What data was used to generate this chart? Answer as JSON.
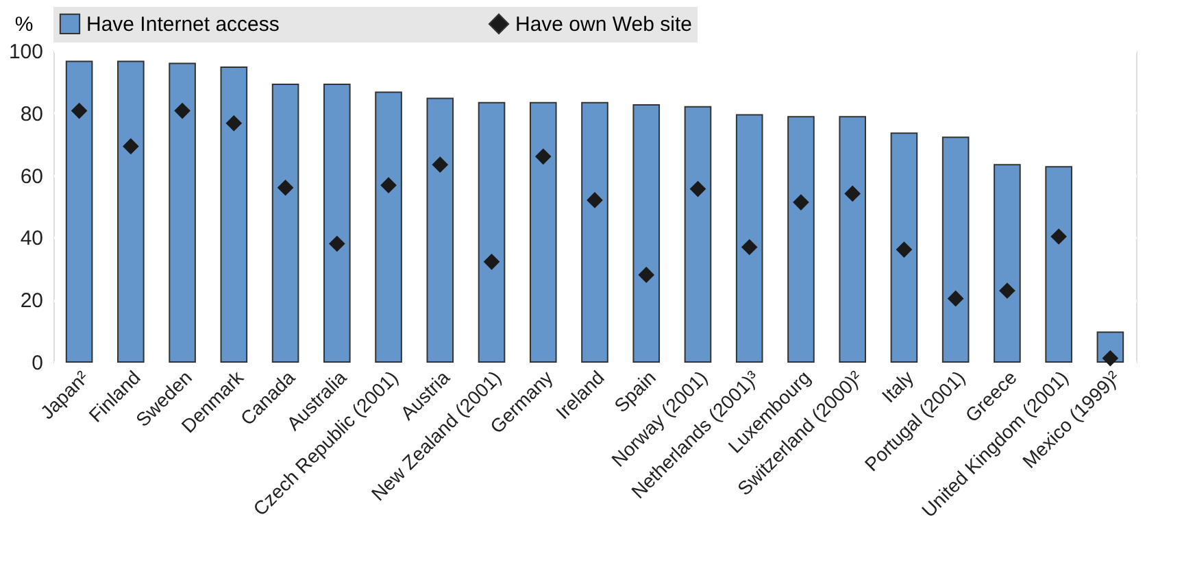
{
  "chart_data": {
    "type": "bar",
    "ylabel": "%",
    "categories": [
      "Japan²",
      "Finland",
      "Sweden",
      "Denmark",
      "Canada",
      "Australia",
      "Czech Republic (2001)",
      "Austria",
      "New Zealand (2001)",
      "Germany",
      "Ireland",
      "Spain",
      "Norway (2001)",
      "Netherlands (2001)³",
      "Luxembourg",
      "Switzerland (2000)²",
      "Italy",
      "Portugal (2001)",
      "Greece",
      "United Kingdom (2001)",
      "Mexico (1999)²"
    ],
    "series": [
      {
        "name": "Have Internet access",
        "color": "#6496cc",
        "values": [
          96.6,
          96.6,
          95.9,
          94.7,
          89.2,
          89.2,
          86.7,
          84.7,
          83.3,
          83.3,
          83.3,
          82.6,
          82,
          79.4,
          78.8,
          78.8,
          73.5,
          72.2,
          63.4,
          62.7,
          9.6
        ]
      },
      {
        "name": "Have own Web site",
        "type": "scatter",
        "marker": "diamond",
        "color": "#1a1a1a",
        "values": [
          80.7,
          69.3,
          80.7,
          76.7,
          56,
          38,
          56.8,
          63.4,
          32.2,
          66,
          52,
          28,
          55.6,
          36.9,
          51.3,
          54.1,
          36.1,
          20.4,
          22.9,
          40.3,
          1.2
        ]
      }
    ],
    "ylim": [
      0,
      100
    ],
    "yticks": [
      0,
      20,
      40,
      60,
      80,
      100
    ],
    "grid": "y",
    "legend": "top"
  }
}
